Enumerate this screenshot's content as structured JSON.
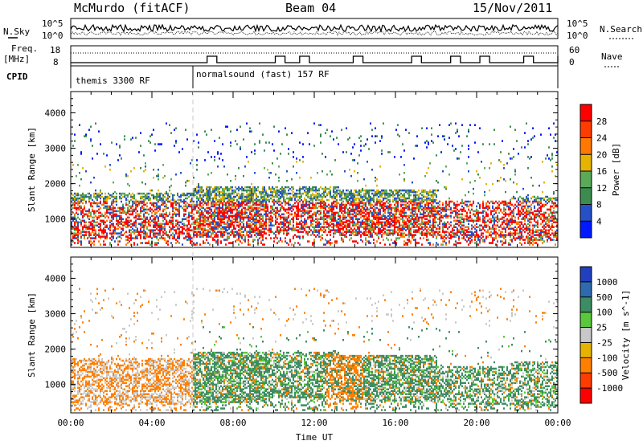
{
  "header": {
    "station": "McMurdo (fitACF)",
    "beam": "Beam 04",
    "date": "15/Nov/2011"
  },
  "side_labels": {
    "nsky": "N.Sky",
    "nsearch": "N.Search",
    "freq_top": "Freq.",
    "freq_unit": "[MHz]",
    "nave": "Nave",
    "cpid": "CPID"
  },
  "top_ticks": {
    "nsky_hi": "10^5",
    "nsky_lo": "10^0",
    "nsearch_hi": "10^5",
    "nsearch_lo": "10^0",
    "freq_hi": "18",
    "freq_lo": "8",
    "nave_hi": "60",
    "nave_lo": "0"
  },
  "cpid_bar": {
    "mode1": "themis 3300 RF",
    "mode2": "normalsound (fast) 157 RF"
  },
  "colors": {
    "power": [
      "#0019ff",
      "#2550c8",
      "#3c8c50",
      "#5aaa5a",
      "#e6b400",
      "#ff7800",
      "#ff3c00",
      "#ff0000"
    ],
    "velocity": [
      "#2040c0",
      "#2e6ab0",
      "#3c8c64",
      "#5ac83c",
      "#c8c8c8",
      "#e6b400",
      "#ff8000",
      "#ff3c00",
      "#ff0000"
    ]
  },
  "chart_data": [
    {
      "type": "heatmap",
      "name": "power",
      "xlabel": "",
      "ylabel": "Slant Range [km]",
      "x_ticks": [
        "00:00",
        "04:00",
        "08:00",
        "12:00",
        "16:00",
        "20:00",
        "00:00"
      ],
      "y_ticks": [
        "1000",
        "2000",
        "3000",
        "4000"
      ],
      "ylim": [
        200,
        4600
      ],
      "colorbar_label": "Power [dB]",
      "colorbar_ticks": [
        "4",
        "8",
        "12",
        "16",
        "20",
        "24",
        "28"
      ]
    },
    {
      "type": "heatmap",
      "name": "velocity",
      "xlabel": "Time UT",
      "ylabel": "Slant Range [km]",
      "x_ticks": [
        "00:00",
        "04:00",
        "08:00",
        "12:00",
        "16:00",
        "20:00",
        "00:00"
      ],
      "y_ticks": [
        "1000",
        "2000",
        "3000",
        "4000"
      ],
      "ylim": [
        200,
        4600
      ],
      "colorbar_label": "Velocity [m s^-1]",
      "colorbar_ticks": [
        "1000",
        "500",
        "100",
        "25",
        "-25",
        "-100",
        "-500",
        "-1000"
      ]
    }
  ]
}
